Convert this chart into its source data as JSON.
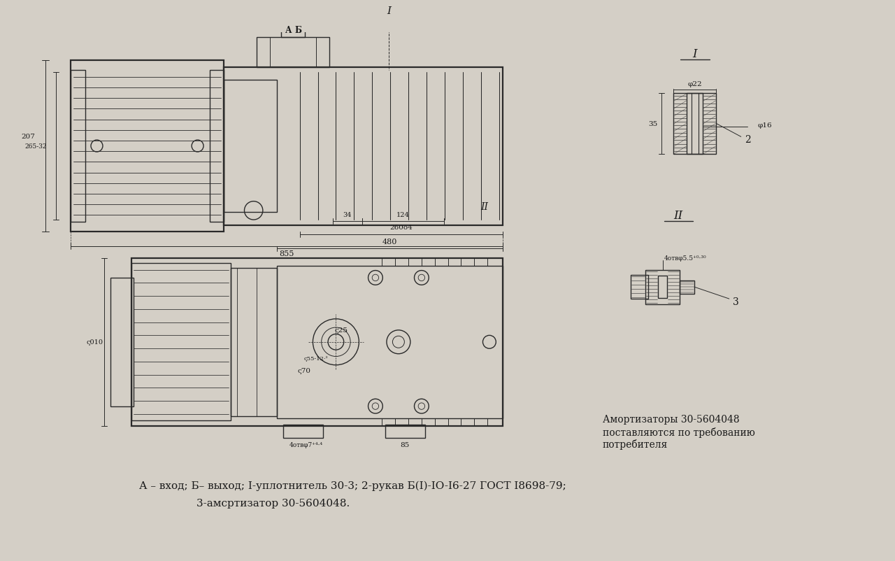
{
  "bg_color": "#d4cfc6",
  "line_color": "#2a2a2a",
  "text_color": "#1a1a1a",
  "figsize": [
    12.8,
    8.03
  ],
  "dpi": 100,
  "bottom_text1": "А – вход; Б– выход; I-уплотнитель 30-3; 2-рукав Б(I)-IO-I6-27 ГОСТ I8698-79;",
  "bottom_text2": "3-амсртизатор 30-5604048.",
  "side_text1": "Амортизаторы 30-5604048",
  "side_text2": "поставляются по требованию",
  "side_text3": "потребителя",
  "lbl_A": "А",
  "lbl_B": "Б",
  "lbl_1": "1",
  "lbl_I": "I",
  "lbl_II": "II",
  "lbl_2": "2",
  "lbl_3": "3",
  "dim_855": "855",
  "dim_480": "480",
  "dim_260": "260o4",
  "dim_124": "124",
  "dim_34": "34",
  "dim_207": "207",
  "dim_265": "265-32",
  "dim_phi22": "φ22",
  "dim_phi16": "φ16",
  "dim_35": "35",
  "dim_phi70": "ς70",
  "dim_phi25": "ς25",
  "dim_85": "85",
  "dim_holes": "4отвφ7⁺⁴·⁴",
  "dim_holes2": "4отвφ5.5⁺⁰·³⁰",
  "dim_010": "ς010"
}
